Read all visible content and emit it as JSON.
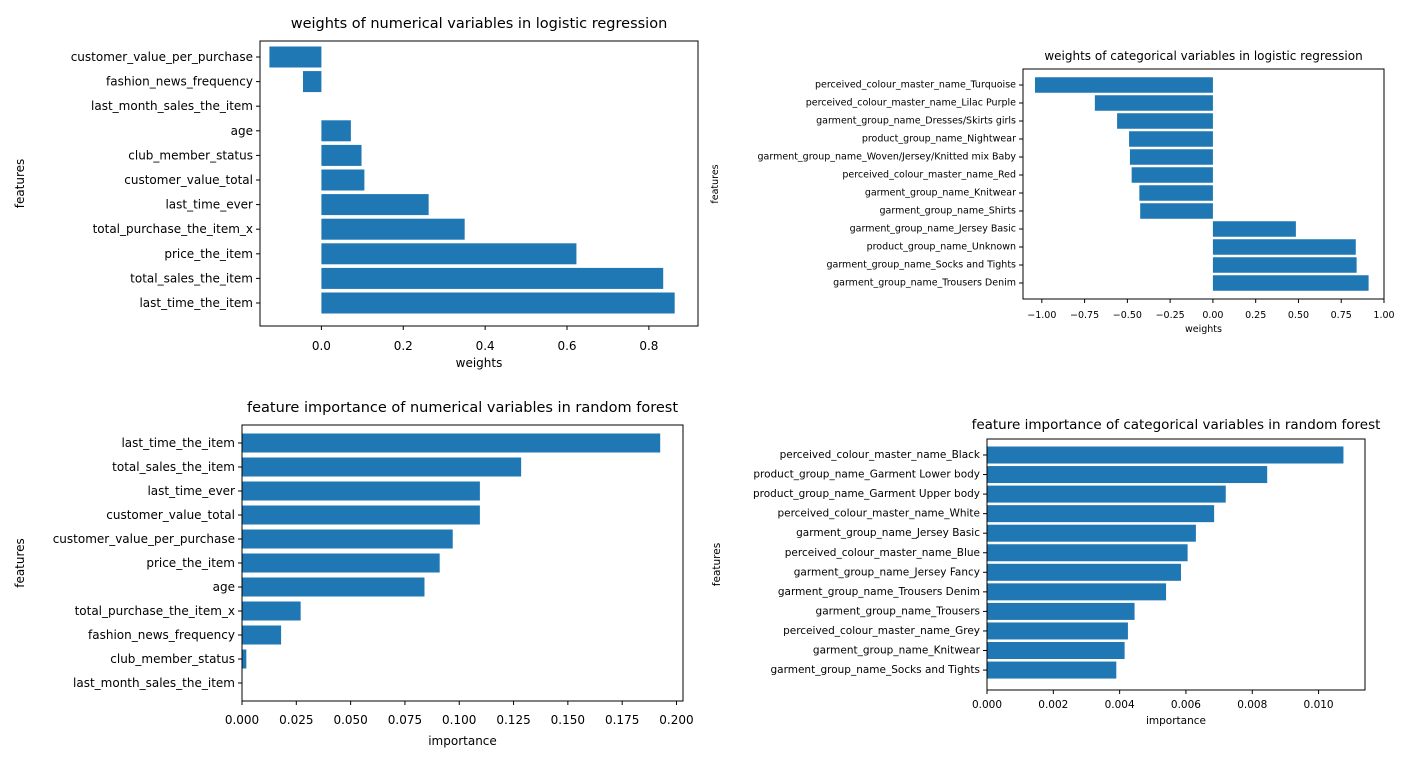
{
  "colors": {
    "bar": "#1f77b4",
    "axis": "#000000",
    "text": "#000000"
  },
  "chart_data": [
    {
      "type": "bar",
      "orientation": "horizontal",
      "title": "weights of numerical variables in logistic regression",
      "xlabel": "weights",
      "ylabel": "features",
      "xlim": [
        -0.15,
        0.92
      ],
      "xticks": [
        0.0,
        0.2,
        0.4,
        0.6,
        0.8
      ],
      "xtick_labels": [
        "0.0",
        "0.2",
        "0.4",
        "0.6",
        "0.8"
      ],
      "categories": [
        "customer_value_per_purchase",
        "fashion_news_frequency",
        "last_month_sales_the_item",
        "age",
        "club_member_status",
        "customer_value_total",
        "last_time_ever",
        "total_purchase_the_item_x",
        "price_the_item",
        "total_sales_the_item",
        "last_time_the_item"
      ],
      "values": [
        -0.127,
        -0.045,
        0.0,
        0.072,
        0.098,
        0.105,
        0.262,
        0.35,
        0.623,
        0.835,
        0.863
      ]
    },
    {
      "type": "bar",
      "orientation": "horizontal",
      "title": "weights of categorical variables in logistic regression",
      "xlabel": "weights",
      "ylabel": "features",
      "xlim": [
        -1.11,
        1.0
      ],
      "xticks": [
        -1.0,
        -0.75,
        -0.5,
        -0.25,
        0.0,
        0.25,
        0.5,
        0.75,
        1.0
      ],
      "xtick_labels": [
        "−1.00",
        "−0.75",
        "−0.50",
        "−0.25",
        "0.00",
        "0.25",
        "0.50",
        "0.75",
        "1.00"
      ],
      "categories": [
        "perceived_colour_master_name_Turquoise",
        "perceived_colour_master_name_Lilac Purple",
        "garment_group_name_Dresses/Skirts girls",
        "product_group_name_Nightwear",
        "garment_group_name_Woven/Jersey/Knitted mix Baby",
        "perceived_colour_master_name_Red",
        "garment_group_name_Knitwear",
        "garment_group_name_Shirts",
        "garment_group_name_Jersey Basic",
        "product_group_name_Unknown",
        "garment_group_name_Socks and Tights",
        "garment_group_name_Trousers Denim"
      ],
      "values": [
        -1.04,
        -0.69,
        -0.56,
        -0.49,
        -0.485,
        -0.475,
        -0.43,
        -0.425,
        0.485,
        0.835,
        0.84,
        0.91
      ]
    },
    {
      "type": "bar",
      "orientation": "horizontal",
      "title": "feature importance of numerical variables in random forest",
      "xlabel": "importance",
      "ylabel": "features",
      "xlim": [
        0.0,
        0.203
      ],
      "xticks": [
        0.0,
        0.025,
        0.05,
        0.075,
        0.1,
        0.125,
        0.15,
        0.175,
        0.2
      ],
      "xtick_labels": [
        "0.000",
        "0.025",
        "0.050",
        "0.075",
        "0.100",
        "0.125",
        "0.150",
        "0.175",
        "0.200"
      ],
      "categories": [
        "last_time_the_item",
        "total_sales_the_item",
        "last_time_ever",
        "customer_value_total",
        "customer_value_per_purchase",
        "price_the_item",
        "age",
        "total_purchase_the_item_x",
        "fashion_news_frequency",
        "club_member_status",
        "last_month_sales_the_item"
      ],
      "values": [
        0.1925,
        0.1285,
        0.1095,
        0.1095,
        0.097,
        0.091,
        0.084,
        0.027,
        0.018,
        0.002,
        0.0
      ]
    },
    {
      "type": "bar",
      "orientation": "horizontal",
      "title": "feature importance of categorical variables in random forest",
      "xlabel": "importance",
      "ylabel": "features",
      "xlim": [
        0.0,
        0.0114
      ],
      "xticks": [
        0.0,
        0.002,
        0.004,
        0.006,
        0.008,
        0.01
      ],
      "xtick_labels": [
        "0.000",
        "0.002",
        "0.004",
        "0.006",
        "0.008",
        "0.010"
      ],
      "categories": [
        "perceived_colour_master_name_Black",
        "product_group_name_Garment Lower body",
        "product_group_name_Garment Upper body",
        "perceived_colour_master_name_White",
        "garment_group_name_Jersey Basic",
        "perceived_colour_master_name_Blue",
        "garment_group_name_Jersey Fancy",
        "garment_group_name_Trousers Denim",
        "garment_group_name_Trousers",
        "perceived_colour_master_name_Grey",
        "garment_group_name_Knitwear",
        "garment_group_name_Socks and Tights"
      ],
      "values": [
        0.01075,
        0.00845,
        0.0072,
        0.00685,
        0.0063,
        0.00605,
        0.00585,
        0.0054,
        0.00445,
        0.00425,
        0.00415,
        0.0039
      ]
    }
  ]
}
